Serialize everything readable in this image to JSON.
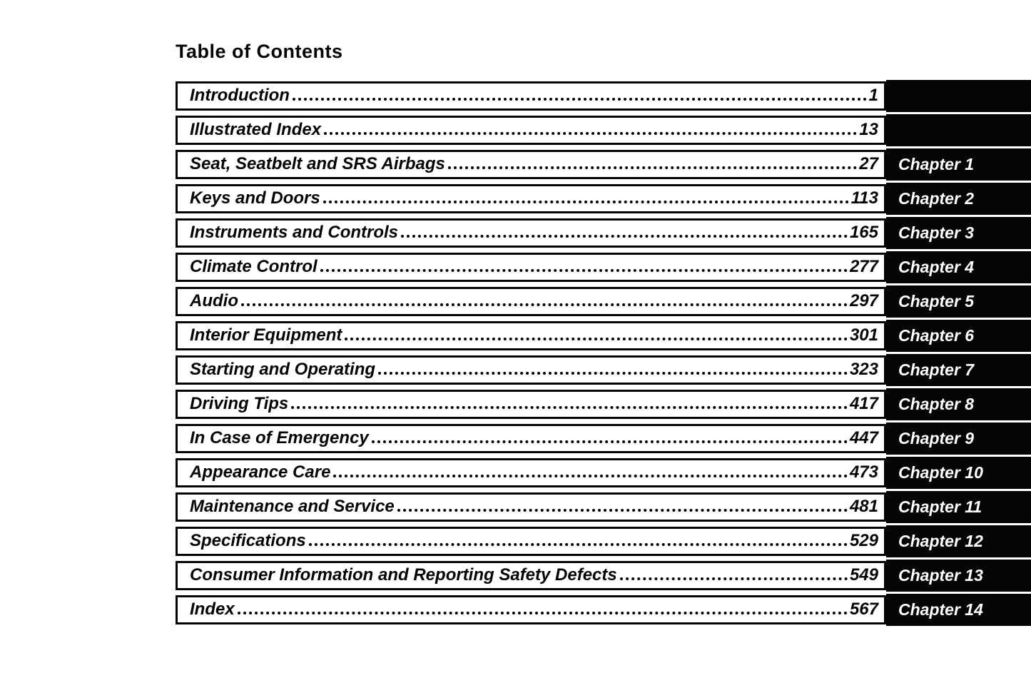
{
  "page": {
    "title": "Table of Contents"
  },
  "colors": {
    "ink": "#050505",
    "paper": "#ffffff",
    "tab_bg": "#050505",
    "tab_text": "#ffffff"
  },
  "toc": {
    "entries": [
      {
        "label": "Introduction",
        "page": "1",
        "chapter": ""
      },
      {
        "label": "Illustrated Index",
        "page": "13",
        "chapter": ""
      },
      {
        "label": "Seat, Seatbelt and SRS Airbags",
        "page": "27",
        "chapter": "Chapter 1"
      },
      {
        "label": "Keys and Doors",
        "page": "113",
        "chapter": "Chapter 2"
      },
      {
        "label": "Instruments and Controls",
        "page": "165",
        "chapter": "Chapter 3"
      },
      {
        "label": "Climate Control",
        "page": "277",
        "chapter": "Chapter 4"
      },
      {
        "label": "Audio",
        "page": "297",
        "chapter": "Chapter 5"
      },
      {
        "label": "Interior Equipment",
        "page": "301",
        "chapter": "Chapter 6"
      },
      {
        "label": "Starting and Operating",
        "page": "323",
        "chapter": "Chapter 7"
      },
      {
        "label": "Driving Tips",
        "page": "417",
        "chapter": "Chapter 8"
      },
      {
        "label": "In Case of Emergency",
        "page": "447",
        "chapter": "Chapter 9"
      },
      {
        "label": "Appearance Care",
        "page": "473",
        "chapter": "Chapter 10"
      },
      {
        "label": "Maintenance and Service",
        "page": "481",
        "chapter": "Chapter 11"
      },
      {
        "label": "Specifications",
        "page": "529",
        "chapter": "Chapter 12"
      },
      {
        "label": "Consumer Information and Reporting Safety Defects",
        "page": "549",
        "chapter": "Chapter 13"
      },
      {
        "label": "Index",
        "page": "567",
        "chapter": "Chapter 14"
      }
    ]
  }
}
